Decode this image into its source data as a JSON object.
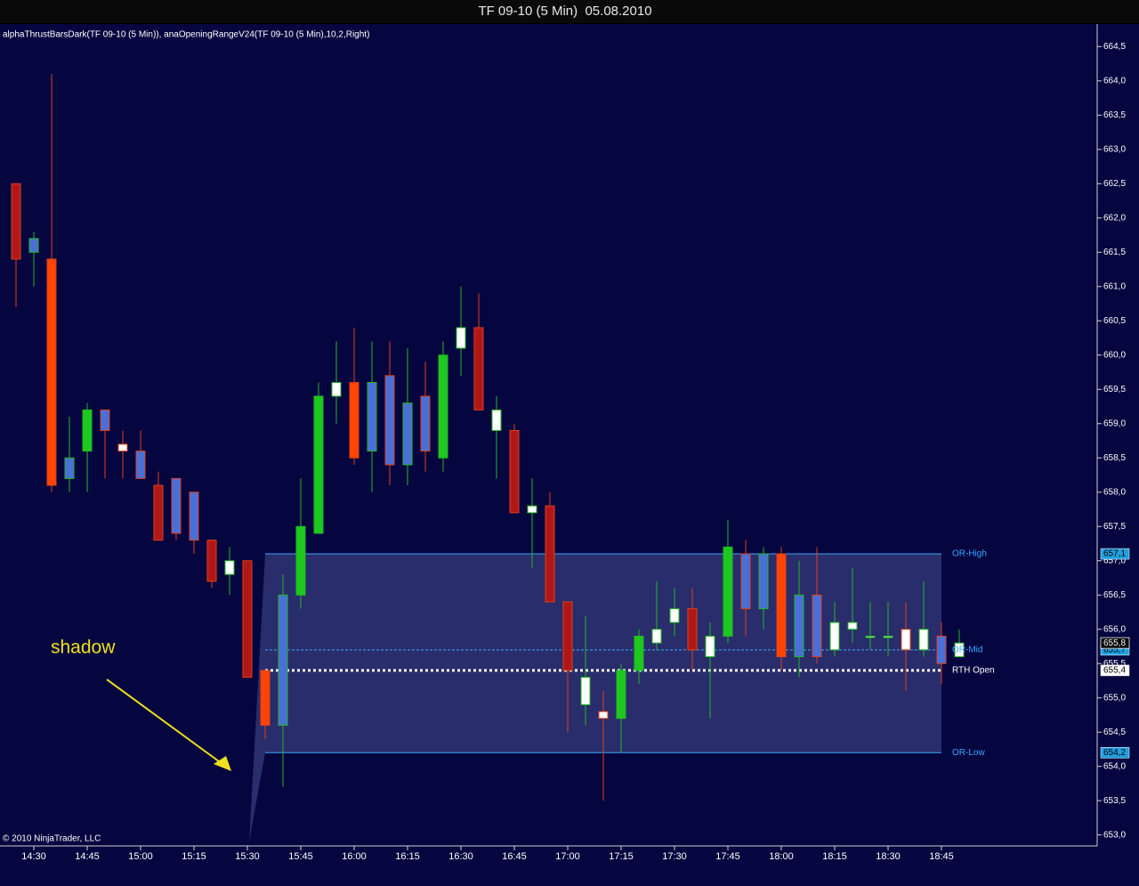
{
  "chart_data": {
    "type": "candlestick",
    "title": "TF 09-10 (5 Min)  05.08.2010",
    "subtitle": "alphaThrustBarsDark(TF 09-10 (5 Min)), anaOpeningRangeV24(TF 09-10 (5 Min),10,2,Right)",
    "footer": "© 2010 NinjaTrader, LLC",
    "annotation": "shadow",
    "categories": [
      null,
      "14:30",
      null,
      null,
      "14:45",
      null,
      null,
      "15:00",
      null,
      null,
      "15:15",
      null,
      null,
      "15:30",
      null,
      null,
      "15:45",
      null,
      null,
      "16:00",
      null,
      null,
      "16:15",
      null,
      null,
      "16:30",
      null,
      null,
      "16:45",
      null,
      null,
      "17:00",
      null,
      null,
      "17:15",
      null,
      null,
      "17:30",
      null,
      null,
      "17:45",
      null,
      null,
      "18:00",
      null,
      null,
      "18:15",
      null,
      null,
      "18:30",
      null,
      null,
      "18:45",
      null
    ],
    "open": [
      662.5,
      661.5,
      661.4,
      658.2,
      658.6,
      659.2,
      658.7,
      658.6,
      658.1,
      658.2,
      658.0,
      657.3,
      656.8,
      657.0,
      655.4,
      654.6,
      656.5,
      657.4,
      659.4,
      659.6,
      658.6,
      659.7,
      658.4,
      659.4,
      658.5,
      660.1,
      660.4,
      658.9,
      658.9,
      657.7,
      657.8,
      656.4,
      654.9,
      654.8,
      654.7,
      655.4,
      655.8,
      656.1,
      656.3,
      655.6,
      655.9,
      657.1,
      656.3,
      657.1,
      655.6,
      656.5,
      655.7,
      656.0,
      655.9,
      655.9,
      656.0,
      655.7,
      655.9,
      655.6
    ],
    "high": [
      662.5,
      661.8,
      664.1,
      659.1,
      659.3,
      659.2,
      658.9,
      658.9,
      658.3,
      658.2,
      658.0,
      657.3,
      657.2,
      657.0,
      655.4,
      656.8,
      658.2,
      659.6,
      660.2,
      660.4,
      660.2,
      660.2,
      660.1,
      659.9,
      660.2,
      661.0,
      660.9,
      659.4,
      659.0,
      658.2,
      658.0,
      656.4,
      656.2,
      655.1,
      655.5,
      656.0,
      656.7,
      656.6,
      656.6,
      656.1,
      657.6,
      657.3,
      657.2,
      657.2,
      657.0,
      657.2,
      656.4,
      656.9,
      656.4,
      656.4,
      656.4,
      656.7,
      656.1,
      656.0
    ],
    "low": [
      660.7,
      661.0,
      658.0,
      658.0,
      658.0,
      658.2,
      658.2,
      658.2,
      657.3,
      657.3,
      657.1,
      656.6,
      656.5,
      655.3,
      654.4,
      653.7,
      656.3,
      657.4,
      659.0,
      658.4,
      658.0,
      658.1,
      658.1,
      658.3,
      658.3,
      659.7,
      659.2,
      658.2,
      657.7,
      656.9,
      656.4,
      654.5,
      654.6,
      653.5,
      654.2,
      655.2,
      655.7,
      655.9,
      655.4,
      654.7,
      655.8,
      655.9,
      656.0,
      655.4,
      655.3,
      655.5,
      655.6,
      655.8,
      655.7,
      655.6,
      655.1,
      655.6,
      655.2,
      655.6
    ],
    "close": [
      661.4,
      661.7,
      658.1,
      658.5,
      659.2,
      658.9,
      658.6,
      658.2,
      657.3,
      657.4,
      657.3,
      656.7,
      657.0,
      655.3,
      654.6,
      656.5,
      657.5,
      659.4,
      659.6,
      658.5,
      659.6,
      658.4,
      659.3,
      658.6,
      660.0,
      660.4,
      659.2,
      659.2,
      657.7,
      657.8,
      656.4,
      655.4,
      655.3,
      654.7,
      655.4,
      655.9,
      656.0,
      656.3,
      655.7,
      655.9,
      657.2,
      656.3,
      657.1,
      655.6,
      656.5,
      655.6,
      656.1,
      656.1,
      655.9,
      655.9,
      655.7,
      656.0,
      655.5,
      655.8
    ],
    "colors": [
      "#b01818",
      "#4a6fd8",
      "#ff4500",
      "#4a6fd8",
      "#1ec81e",
      "#4a6fd8",
      "#ffffff",
      "#4a6fd8",
      "#b01818",
      "#4a6fd8",
      "#4a6fd8",
      "#b01818",
      "#ffffff",
      "#b01818",
      "#ff4500",
      "#4a6fd8",
      "#1ec81e",
      "#1ec81e",
      "#ffffff",
      "#ff4500",
      "#4a6fd8",
      "#4a6fd8",
      "#4a6fd8",
      "#4a6fd8",
      "#1ec81e",
      "#ffffff",
      "#b01818",
      "#ffffff",
      "#b01818",
      "#ffffff",
      "#b01818",
      "#b01818",
      "#ffffff",
      "#ffffff",
      "#1ec81e",
      "#1ec81e",
      "#ffffff",
      "#ffffff",
      "#b01818",
      "#ffffff",
      "#1ec81e",
      "#4a6fd8",
      "#4a6fd8",
      "#ff4500",
      "#4a6fd8",
      "#4a6fd8",
      "#ffffff",
      "#ffffff",
      "#ffffff",
      "#ffffff",
      "#ffffff",
      "#ffffff",
      "#4a6fd8",
      "#ffffff"
    ],
    "up_wick_color": "#22b822",
    "down_wick_color": "#e0401a",
    "levels": [
      {
        "name": "OR-High",
        "value": 657.1,
        "value_label": "657,1",
        "color": "#3aa8ff",
        "style": "solid"
      },
      {
        "name": "OR-Mid",
        "value": 655.7,
        "value_label": "655,7",
        "color": "#3aa8ff",
        "style": "dashed"
      },
      {
        "name": "RTH Open",
        "value": 655.4,
        "value_label": "655,4",
        "color": "#ffffff",
        "style": "dotted"
      },
      {
        "name": "OR-Low",
        "value": 654.2,
        "value_label": "654,2",
        "color": "#3aa8ff",
        "style": "solid"
      }
    ],
    "last_price": {
      "value": 655.8,
      "label": "655,8"
    },
    "ylim": [
      652.84,
      664.79
    ],
    "yticks": [
      {
        "value": 653.0,
        "label": "653,0"
      },
      {
        "value": 653.5,
        "label": "653,5"
      },
      {
        "value": 654.0,
        "label": "654,0"
      },
      {
        "value": 654.5,
        "label": "654,5"
      },
      {
        "value": 655.0,
        "label": "655,0"
      },
      {
        "value": 655.5,
        "label": "655,5"
      },
      {
        "value": 656.0,
        "label": "656,0"
      },
      {
        "value": 656.5,
        "label": "656,5"
      },
      {
        "value": 657.0,
        "label": "657,0"
      },
      {
        "value": 657.5,
        "label": "657,5"
      },
      {
        "value": 658.0,
        "label": "658,0"
      },
      {
        "value": 658.5,
        "label": "658,5"
      },
      {
        "value": 659.0,
        "label": "659,0"
      },
      {
        "value": 659.5,
        "label": "659,5"
      },
      {
        "value": 660.0,
        "label": "660,0"
      },
      {
        "value": 660.5,
        "label": "660,5"
      },
      {
        "value": 661.0,
        "label": "661,0"
      },
      {
        "value": 661.5,
        "label": "661,5"
      },
      {
        "value": 662.0,
        "label": "662,0"
      },
      {
        "value": 662.5,
        "label": "662,5"
      },
      {
        "value": 663.0,
        "label": "663,0"
      },
      {
        "value": 663.5,
        "label": "663,5"
      },
      {
        "value": 664.0,
        "label": "664,0"
      },
      {
        "value": 664.5,
        "label": "664,5"
      }
    ]
  }
}
